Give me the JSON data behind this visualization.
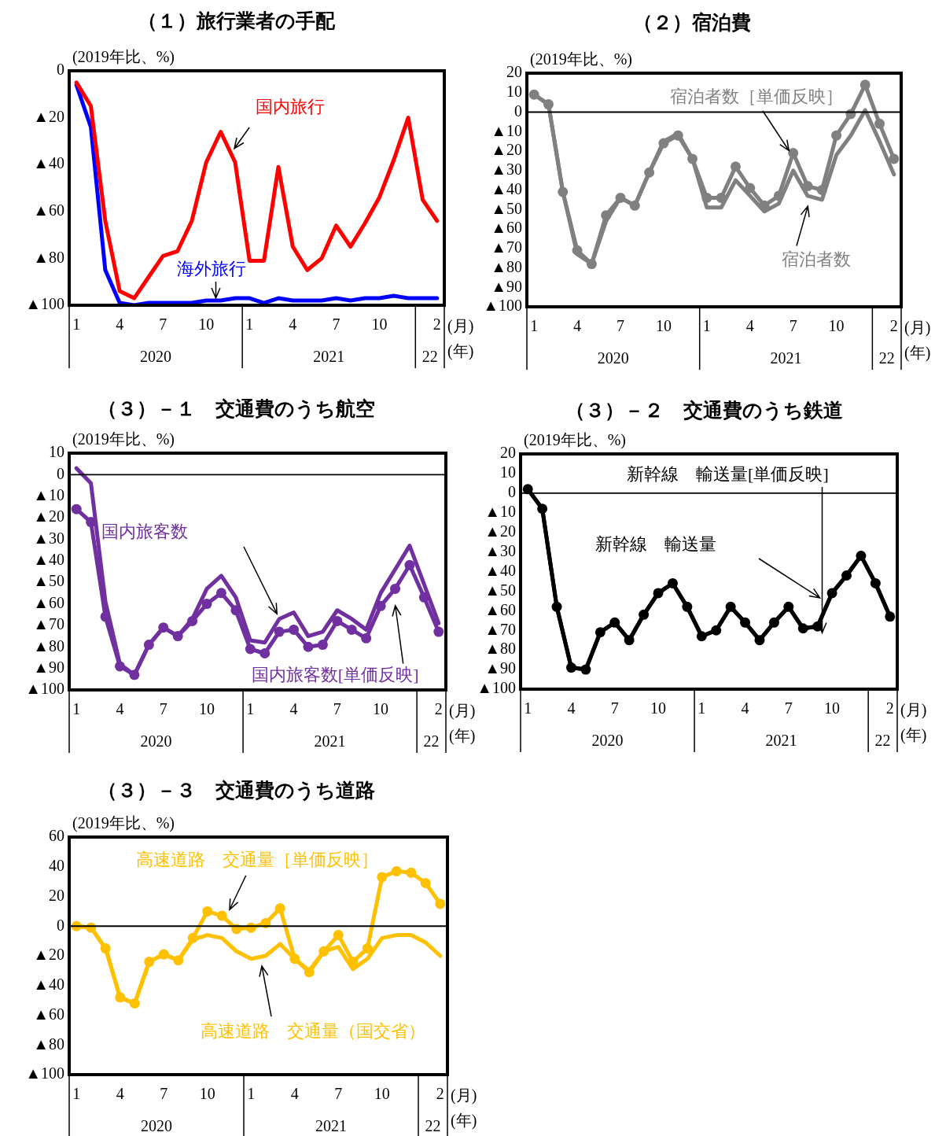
{
  "chart_data": [
    {
      "type": "line",
      "title": "（１）旅行業者の手配",
      "ylabel": "(2019年比、%)",
      "categories": [
        "1",
        null,
        null,
        "4",
        null,
        null,
        "7",
        null,
        null,
        "10",
        null,
        null,
        "1",
        null,
        null,
        "4",
        null,
        null,
        "7",
        null,
        null,
        "10",
        null,
        null,
        null,
        "2"
      ],
      "series": [
        {
          "name": "国内旅行",
          "color": "#ff0000",
          "marker": "none",
          "values": [
            -5,
            -15,
            -64,
            -94,
            -97,
            -88,
            -79,
            -77,
            -64,
            -39,
            -26,
            -39,
            -81,
            -81,
            -41,
            -75,
            -85,
            -80,
            -66,
            -75,
            -65,
            -54,
            -38,
            -20,
            -55,
            -64
          ]
        },
        {
          "name": "海外旅行",
          "color": "#0000ff",
          "marker": "none",
          "values": [
            -6,
            -24,
            -85,
            -99,
            -100,
            -99,
            -99,
            -99,
            -99,
            -98,
            -98,
            -97,
            -97,
            -99,
            -97,
            -98,
            -98,
            -98,
            -97,
            -98,
            -97,
            -97,
            -96,
            -97,
            -97,
            -97
          ]
        }
      ],
      "ylim": [
        -100,
        0
      ],
      "yticks": [
        {
          "value": 0,
          "label": "0"
        },
        {
          "value": -20,
          "label": "▲20"
        },
        {
          "value": -40,
          "label": "▲40"
        },
        {
          "value": -60,
          "label": "▲60"
        },
        {
          "value": -80,
          "label": "▲80"
        },
        {
          "value": -100,
          "label": "▲100"
        }
      ],
      "grid": false,
      "legend": false,
      "annotations": [
        "2020",
        "2021",
        "22",
        "(月)",
        "(年)"
      ]
    },
    {
      "type": "line",
      "title": "（２）宿泊費",
      "ylabel": "(2019年比、%)",
      "categories": [
        "1",
        null,
        null,
        "4",
        null,
        null,
        "7",
        null,
        null,
        "10",
        null,
        null,
        "1",
        null,
        null,
        "4",
        null,
        null,
        "7",
        null,
        null,
        "10",
        null,
        null,
        null,
        "2"
      ],
      "series": [
        {
          "name": "宿泊者数［単価反映］",
          "color": "#808080",
          "marker": "circle",
          "values": [
            9,
            4,
            -41,
            -71,
            -78,
            -53,
            -44,
            -48,
            -31,
            -16,
            -12,
            -24,
            -44,
            -44,
            -28,
            -39,
            -48,
            -43,
            -21,
            -38,
            -40,
            -12,
            -1,
            14,
            -6,
            -24
          ]
        },
        {
          "name": "宿泊者数",
          "color": "#808080",
          "marker": "none",
          "values": [
            9,
            4,
            -41,
            -73,
            -78,
            -56,
            -44,
            -48,
            -31,
            -15,
            -11,
            -24,
            -49,
            -49,
            -35,
            -43,
            -51,
            -47,
            -30,
            -43,
            -45,
            -22,
            -12,
            1,
            -15,
            -32
          ]
        }
      ],
      "ylim": [
        -100,
        20
      ],
      "yticks": [
        {
          "value": 20,
          "label": "20"
        },
        {
          "value": 10,
          "label": "10"
        },
        {
          "value": 0,
          "label": "0"
        },
        {
          "value": -10,
          "label": "▲10"
        },
        {
          "value": -20,
          "label": "▲20"
        },
        {
          "value": -30,
          "label": "▲30"
        },
        {
          "value": -40,
          "label": "▲40"
        },
        {
          "value": -50,
          "label": "▲50"
        },
        {
          "value": -60,
          "label": "▲60"
        },
        {
          "value": -70,
          "label": "▲70"
        },
        {
          "value": -80,
          "label": "▲80"
        },
        {
          "value": -90,
          "label": "▲90"
        },
        {
          "value": -100,
          "label": "▲100"
        }
      ],
      "ref_lines": [
        {
          "axis": "y",
          "value": 0
        }
      ],
      "grid": false,
      "legend": false,
      "annotations": [
        "2020",
        "2021",
        "22",
        "(月)",
        "(年)"
      ]
    },
    {
      "type": "line",
      "title": "（３）－１　交通費のうち航空",
      "ylabel": "(2019年比、%)",
      "categories": [
        "1",
        null,
        null,
        "4",
        null,
        null,
        "7",
        null,
        null,
        "10",
        null,
        null,
        "1",
        null,
        null,
        "4",
        null,
        null,
        "7",
        null,
        null,
        "10",
        null,
        null,
        null,
        "2"
      ],
      "series": [
        {
          "name": "国内旅客数",
          "color": "#7030a0",
          "marker": "none",
          "values": [
            3,
            -4,
            -59,
            -88,
            -93,
            -79,
            -71,
            -75,
            -67,
            -53,
            -47,
            -57,
            -77,
            -78,
            -67,
            -64,
            -75,
            -73,
            -63,
            -67,
            -72,
            -55,
            -44,
            -33,
            -51,
            -69
          ]
        },
        {
          "name": "国内旅客数[単価反映]",
          "color": "#7030a0",
          "marker": "circle",
          "values": [
            -16,
            -22,
            -66,
            -89,
            -93,
            -79,
            -71,
            -75,
            -68,
            -60,
            -55,
            -63,
            -81,
            -83,
            -73,
            -72,
            -80,
            -79,
            -68,
            -72,
            -76,
            -61,
            -53,
            -42,
            -57,
            -73
          ]
        }
      ],
      "ylim": [
        -100,
        10
      ],
      "yticks": [
        {
          "value": 10,
          "label": "10"
        },
        {
          "value": 0,
          "label": "0"
        },
        {
          "value": -10,
          "label": "▲10"
        },
        {
          "value": -20,
          "label": "▲20"
        },
        {
          "value": -30,
          "label": "▲30"
        },
        {
          "value": -40,
          "label": "▲40"
        },
        {
          "value": -50,
          "label": "▲50"
        },
        {
          "value": -60,
          "label": "▲60"
        },
        {
          "value": -70,
          "label": "▲70"
        },
        {
          "value": -80,
          "label": "▲80"
        },
        {
          "value": -90,
          "label": "▲90"
        },
        {
          "value": -100,
          "label": "▲100"
        }
      ],
      "ref_lines": [
        {
          "axis": "y",
          "value": 0
        }
      ],
      "grid": false,
      "legend": false,
      "annotations": [
        "2020",
        "2021",
        "22",
        "(月)",
        "(年)"
      ]
    },
    {
      "type": "line",
      "title": "（３）－２　交通費のうち鉄道",
      "ylabel": "(2019年比、%)",
      "categories": [
        "1",
        null,
        null,
        "4",
        null,
        null,
        "7",
        null,
        null,
        "10",
        null,
        null,
        "1",
        null,
        null,
        "4",
        null,
        null,
        "7",
        null,
        null,
        "10",
        null,
        null,
        null,
        "2"
      ],
      "series": [
        {
          "name": "新幹線　輸送量[単価反映]",
          "color": "#000000",
          "marker": "circle",
          "values": [
            2,
            -8,
            -58,
            -89,
            -90,
            -71,
            -66,
            -75,
            -62,
            -51,
            -46,
            -58,
            -73,
            -70,
            -58,
            -66,
            -75,
            -66,
            -58,
            -69,
            -68,
            -51,
            -42,
            -32,
            -46,
            -63
          ]
        },
        {
          "name": "新幹線　輸送量",
          "color": "#000000",
          "marker": "none",
          "values": [
            2,
            -8,
            -58,
            -89,
            -90,
            -71,
            -66,
            -75,
            -62,
            -51,
            -46,
            -58,
            -73,
            -70,
            -58,
            -66,
            -75,
            -66,
            -58,
            -69,
            -68,
            -51,
            -42,
            -32,
            -46,
            -63
          ]
        }
      ],
      "ylim": [
        -100,
        20
      ],
      "yticks": [
        {
          "value": 20,
          "label": "20"
        },
        {
          "value": 10,
          "label": "10"
        },
        {
          "value": 0,
          "label": "0"
        },
        {
          "value": -10,
          "label": "▲10"
        },
        {
          "value": -20,
          "label": "▲20"
        },
        {
          "value": -30,
          "label": "▲30"
        },
        {
          "value": -40,
          "label": "▲40"
        },
        {
          "value": -50,
          "label": "▲50"
        },
        {
          "value": -60,
          "label": "▲60"
        },
        {
          "value": -70,
          "label": "▲70"
        },
        {
          "value": -80,
          "label": "▲80"
        },
        {
          "value": -90,
          "label": "▲90"
        },
        {
          "value": -100,
          "label": "▲100"
        }
      ],
      "ref_lines": [
        {
          "axis": "y",
          "value": 0
        }
      ],
      "grid": false,
      "legend": false,
      "annotations": [
        "2020",
        "2021",
        "22",
        "(月)",
        "(年)"
      ]
    },
    {
      "type": "line",
      "title": "（３）－３　交通費のうち道路",
      "ylabel": "(2019年比、%)",
      "categories": [
        "1",
        null,
        null,
        "4",
        null,
        null,
        "7",
        null,
        null,
        "10",
        null,
        null,
        "1",
        null,
        null,
        "4",
        null,
        null,
        "7",
        null,
        null,
        "10",
        null,
        null,
        null,
        "2"
      ],
      "series": [
        {
          "name": "高速道路　交通量［単価反映］",
          "color": "#ffc000",
          "marker": "circle",
          "values": [
            0,
            -1,
            -15,
            -48,
            -52,
            -24,
            -19,
            -23,
            -8,
            10,
            7,
            -2,
            -1,
            2,
            12,
            -22,
            -31,
            -17,
            -6,
            -24,
            -15,
            33,
            37,
            36,
            29,
            15
          ]
        },
        {
          "name": "高速道路　交通量（国交省）",
          "color": "#ffc000",
          "marker": "none",
          "values": [
            0,
            -1,
            -15,
            -48,
            -52,
            -24,
            -19,
            -23,
            -9,
            -6,
            -8,
            -17,
            -22,
            -20,
            -12,
            -22,
            -30,
            -17,
            -14,
            -29,
            -22,
            -8,
            -6,
            -6,
            -11,
            -20
          ]
        }
      ],
      "ylim": [
        -100,
        60
      ],
      "yticks": [
        {
          "value": 60,
          "label": "60"
        },
        {
          "value": 40,
          "label": "40"
        },
        {
          "value": 20,
          "label": "20"
        },
        {
          "value": 0,
          "label": "0"
        },
        {
          "value": -20,
          "label": "▲20"
        },
        {
          "value": -40,
          "label": "▲40"
        },
        {
          "value": -60,
          "label": "▲60"
        },
        {
          "value": -80,
          "label": "▲80"
        },
        {
          "value": -100,
          "label": "▲100"
        }
      ],
      "ref_lines": [
        {
          "axis": "y",
          "value": 0
        }
      ],
      "grid": false,
      "legend": false,
      "annotations": [
        "2020",
        "2021",
        "22",
        "(月)",
        "(年)"
      ]
    }
  ]
}
